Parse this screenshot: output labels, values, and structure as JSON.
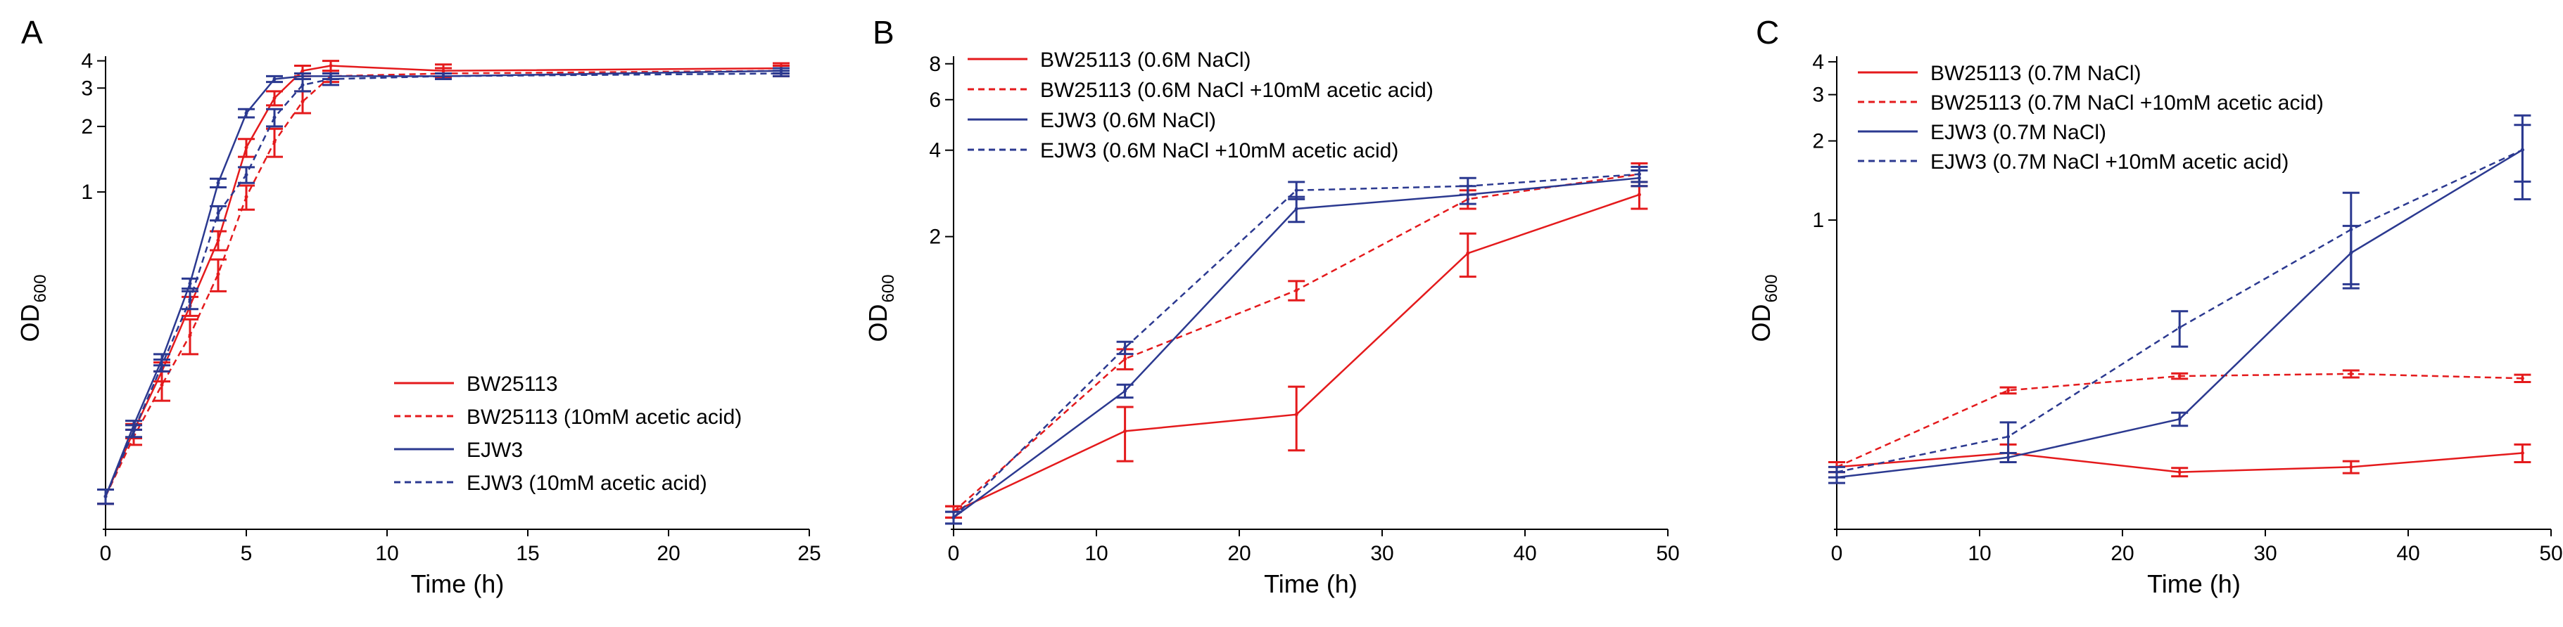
{
  "colors": {
    "red": "#e41a1c",
    "blue": "#2b3990",
    "axis": "#000000"
  },
  "chart_data": [
    {
      "panel": "A",
      "type": "line",
      "xlabel": "Time (h)",
      "ylabel_main": "OD",
      "ylabel_sub": "600",
      "y_scale": "log",
      "xlim": [
        0,
        25
      ],
      "ylim": [
        0.03,
        4.2
      ],
      "xticks": [
        "0",
        "5",
        "10",
        "15",
        "20",
        "25"
      ],
      "yticks": [
        "1",
        "2",
        "3",
        "4"
      ],
      "legend_position": "lower-right",
      "series": [
        {
          "name": "BW25113",
          "color": "red",
          "dash": false,
          "x": [
            0,
            1,
            2,
            3,
            4,
            5,
            6,
            7,
            8,
            12,
            24
          ],
          "y": [
            0.04,
            0.08,
            0.15,
            0.3,
            0.6,
            1.6,
            2.7,
            3.6,
            3.8,
            3.6,
            3.7
          ],
          "err": [
            0.003,
            0.006,
            0.015,
            0.03,
            0.06,
            0.15,
            0.2,
            0.2,
            0.2,
            0.25,
            0.2
          ]
        },
        {
          "name": "BW25113 (10mM acetic acid)",
          "color": "red",
          "dash": true,
          "x": [
            0,
            1,
            2,
            3,
            4,
            5,
            6,
            7,
            8,
            12,
            24
          ],
          "y": [
            0.04,
            0.075,
            0.13,
            0.22,
            0.42,
            0.95,
            1.7,
            2.6,
            3.4,
            3.5,
            3.6
          ],
          "err": [
            0.003,
            0.006,
            0.02,
            0.04,
            0.07,
            0.12,
            0.25,
            0.3,
            0.2,
            0.2,
            0.2
          ]
        },
        {
          "name": "EJW3",
          "color": "blue",
          "dash": false,
          "x": [
            0,
            1,
            2,
            3,
            4,
            5,
            6,
            7,
            8,
            12,
            24
          ],
          "y": [
            0.04,
            0.085,
            0.17,
            0.38,
            1.1,
            2.3,
            3.3,
            3.4,
            3.4,
            3.4,
            3.6
          ],
          "err": [
            0.003,
            0.004,
            0.01,
            0.02,
            0.05,
            0.1,
            0.1,
            0.1,
            0.1,
            0.1,
            0.1
          ]
        },
        {
          "name": "EJW3 (10mM acetic acid)",
          "color": "blue",
          "dash": true,
          "x": [
            0,
            1,
            2,
            3,
            4,
            5,
            6,
            7,
            8,
            12,
            24
          ],
          "y": [
            0.04,
            0.08,
            0.16,
            0.32,
            0.8,
            1.2,
            2.2,
            3.1,
            3.3,
            3.4,
            3.5
          ],
          "err": [
            0.003,
            0.005,
            0.01,
            0.03,
            0.06,
            0.1,
            0.2,
            0.2,
            0.2,
            0.1,
            0.1
          ]
        }
      ]
    },
    {
      "panel": "B",
      "type": "line",
      "xlabel": "Time (h)",
      "ylabel_main": "OD",
      "ylabel_sub": "600",
      "y_scale": "log",
      "xlim": [
        0,
        50
      ],
      "ylim": [
        0.2,
        8.5
      ],
      "xticks": [
        "0",
        "10",
        "20",
        "30",
        "40",
        "50"
      ],
      "yticks": [
        "2",
        "4",
        "6",
        "8"
      ],
      "legend_position": "top-left",
      "series": [
        {
          "name": "BW25113 (0.6M NaCl)",
          "color": "red",
          "dash": false,
          "x": [
            0,
            12,
            24,
            36,
            48
          ],
          "y": [
            0.22,
            0.42,
            0.48,
            1.75,
            2.8
          ],
          "err": [
            0.01,
            0.09,
            0.12,
            0.3,
            0.3
          ]
        },
        {
          "name": "BW25113 (0.6M NaCl +10mM acetic acid)",
          "color": "red",
          "dash": true,
          "x": [
            0,
            12,
            24,
            36,
            48
          ],
          "y": [
            0.22,
            0.75,
            1.3,
            2.7,
            3.3
          ],
          "err": [
            0.01,
            0.06,
            0.1,
            0.2,
            0.3
          ]
        },
        {
          "name": "EJW3 (0.6M NaCl)",
          "color": "blue",
          "dash": false,
          "x": [
            0,
            12,
            24,
            36,
            48
          ],
          "y": [
            0.21,
            0.58,
            2.5,
            2.8,
            3.2
          ],
          "err": [
            0.01,
            0.03,
            0.25,
            0.2,
            0.2
          ]
        },
        {
          "name": "EJW3 (0.6M NaCl +10mM acetic acid)",
          "color": "blue",
          "dash": true,
          "x": [
            0,
            12,
            24,
            36,
            48
          ],
          "y": [
            0.21,
            0.82,
            2.9,
            3.0,
            3.3
          ],
          "err": [
            0.01,
            0.04,
            0.2,
            0.2,
            0.2
          ]
        }
      ]
    },
    {
      "panel": "C",
      "type": "line",
      "xlabel": "Time (h)",
      "ylabel_main": "OD",
      "ylabel_sub": "600",
      "y_scale": "log",
      "xlim": [
        0,
        50
      ],
      "ylim": [
        0.07,
        4.2
      ],
      "xticks": [
        "0",
        "10",
        "20",
        "30",
        "40",
        "50"
      ],
      "yticks": [
        "1",
        "2",
        "3",
        "4"
      ],
      "legend_position": "top-left",
      "series": [
        {
          "name": "BW25113 (0.7M NaCl)",
          "color": "red",
          "dash": false,
          "x": [
            0,
            12,
            24,
            36,
            48
          ],
          "y": [
            0.115,
            0.13,
            0.11,
            0.115,
            0.13
          ],
          "err": [
            0.005,
            0.01,
            0.004,
            0.006,
            0.01
          ]
        },
        {
          "name": "BW25113 (0.7M NaCl +10mM acetic acid)",
          "color": "red",
          "dash": true,
          "x": [
            0,
            12,
            24,
            36,
            48
          ],
          "y": [
            0.115,
            0.225,
            0.255,
            0.26,
            0.25
          ],
          "err": [
            0.005,
            0.006,
            0.006,
            0.008,
            0.008
          ]
        },
        {
          "name": "EJW3 (0.7M NaCl)",
          "color": "blue",
          "dash": false,
          "x": [
            0,
            12,
            24,
            36,
            48
          ],
          "y": [
            0.105,
            0.125,
            0.175,
            0.75,
            1.85
          ],
          "err": [
            0.005,
            0.005,
            0.01,
            0.2,
            0.65
          ]
        },
        {
          "name": "EJW3 (0.7M NaCl +10mM acetic acid)",
          "color": "blue",
          "dash": true,
          "x": [
            0,
            12,
            24,
            36,
            48
          ],
          "y": [
            0.11,
            0.15,
            0.39,
            0.92,
            1.85
          ],
          "err": [
            0.005,
            0.02,
            0.06,
            0.35,
            0.45
          ]
        }
      ]
    }
  ]
}
